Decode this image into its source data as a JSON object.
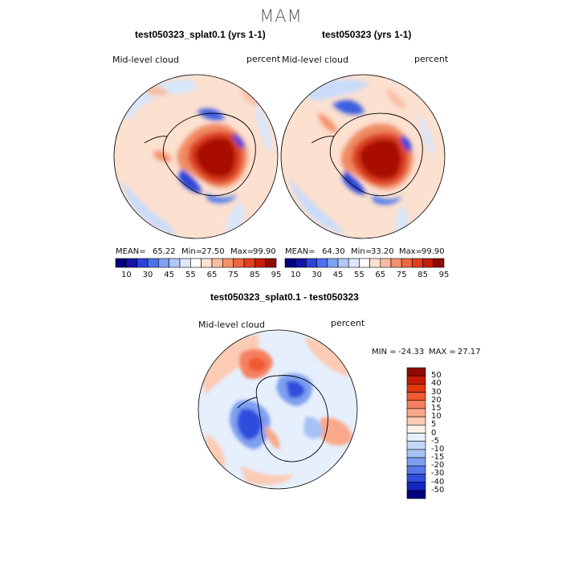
{
  "chart_data": {
    "type": "heatmap",
    "title": "MAM",
    "panels": [
      {
        "id": "case",
        "title": "test050323_splat0.1 (yrs 1-1)",
        "variable": "Mid-level cloud",
        "units": "percent",
        "projection": "polar stereographic (south pole)",
        "stats": {
          "mean_label": "MEAN=",
          "mean": "65.22",
          "min_label": "Min=",
          "min": "27.50",
          "max_label": "Max=",
          "max": "99.90"
        }
      },
      {
        "id": "control",
        "title": "test050323 (yrs 1-1)",
        "variable": "Mid-level cloud",
        "units": "percent",
        "projection": "polar stereographic (south pole)",
        "stats": {
          "mean_label": "MEAN=",
          "mean": "64.30",
          "min_label": "Min=",
          "min": "33.20",
          "max_label": "Max=",
          "max": "99.90"
        }
      },
      {
        "id": "difference",
        "title": "test050323_splat0.1 - test050323",
        "variable": "Mid-level cloud",
        "units": "percent",
        "projection": "polar stereographic (south pole)",
        "stats_text": {
          "min_label": "MIN =",
          "min": "-24.33",
          "max_label": "MAX =",
          "max": "27.17"
        }
      }
    ],
    "colorbar_top": {
      "orientation": "horizontal",
      "colors": [
        "#00007c",
        "#1414a8",
        "#2a44d8",
        "#4a72ee",
        "#7ea2f2",
        "#b0c9f8",
        "#dde8fb",
        "#ffffff",
        "#fde2d2",
        "#f9bca0",
        "#f4926c",
        "#ee6640",
        "#e33e1e",
        "#c81e0a",
        "#8e0b00"
      ],
      "tick_labels": [
        "10",
        "30",
        "45",
        "55",
        "65",
        "75",
        "85",
        "95"
      ]
    },
    "colorbar_diff": {
      "orientation": "vertical",
      "colors": [
        "#8e0b00",
        "#c01a05",
        "#e0360f",
        "#f05a30",
        "#f58060",
        "#faa88a",
        "#fccbb4",
        "#fdf0e8",
        "#e6effc",
        "#c6d8f8",
        "#a6c2f4",
        "#7e9ff0",
        "#5678e8",
        "#2e4ddd",
        "#1226c0",
        "#00007c"
      ],
      "tick_labels": [
        "50",
        "40",
        "30",
        "20",
        "15",
        "10",
        "5",
        "0",
        "-5",
        "-10",
        "-15",
        "-20",
        "-30",
        "-40",
        "-50"
      ]
    }
  }
}
